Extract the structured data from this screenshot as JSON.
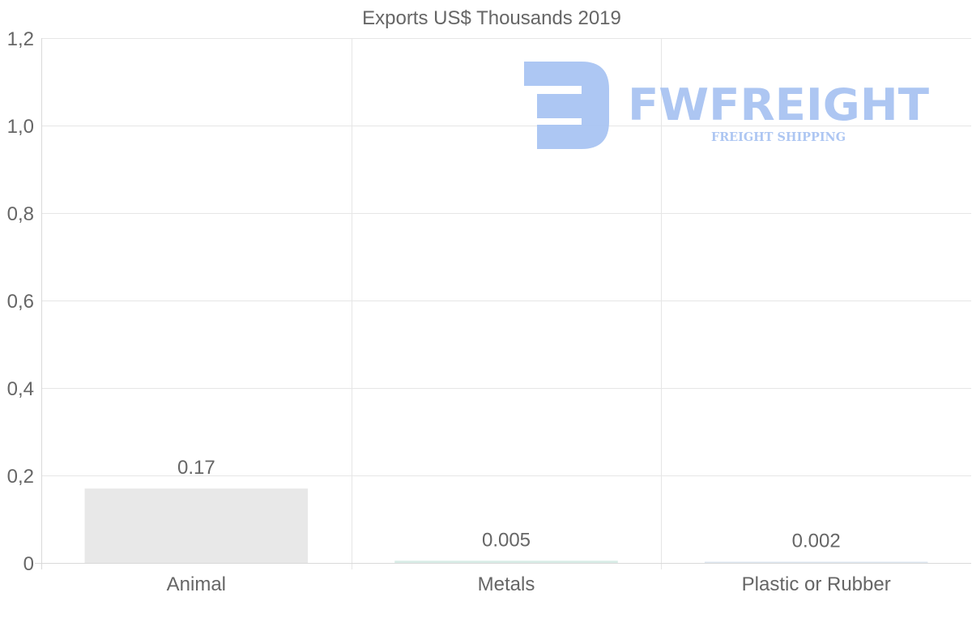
{
  "chart_data": {
    "type": "bar",
    "title": "Exports US$ Thousands 2019",
    "categories": [
      "Animal",
      "Metals",
      "Plastic or Rubber"
    ],
    "values": [
      0.17,
      0.005,
      0.002
    ],
    "value_labels": [
      "0.17",
      "0.005",
      "0.002"
    ],
    "ylim": [
      0,
      1.2
    ],
    "yticks": [
      0,
      0.2,
      0.4,
      0.6,
      0.8,
      1.0,
      1.2
    ],
    "ytick_labels": [
      "0",
      "0,2",
      "0,4",
      "0,6",
      "0,8",
      "1,0",
      "1,2"
    ],
    "xlabel": "",
    "ylabel": "",
    "grid": true,
    "bar_colors": [
      "#e8e8e8",
      "#d8ece6",
      "#dde6ef"
    ]
  },
  "watermark": {
    "brand": "FWFREIGHT",
    "tagline": "FREIGHT SHIPPING",
    "color": "#a9c4f2"
  }
}
